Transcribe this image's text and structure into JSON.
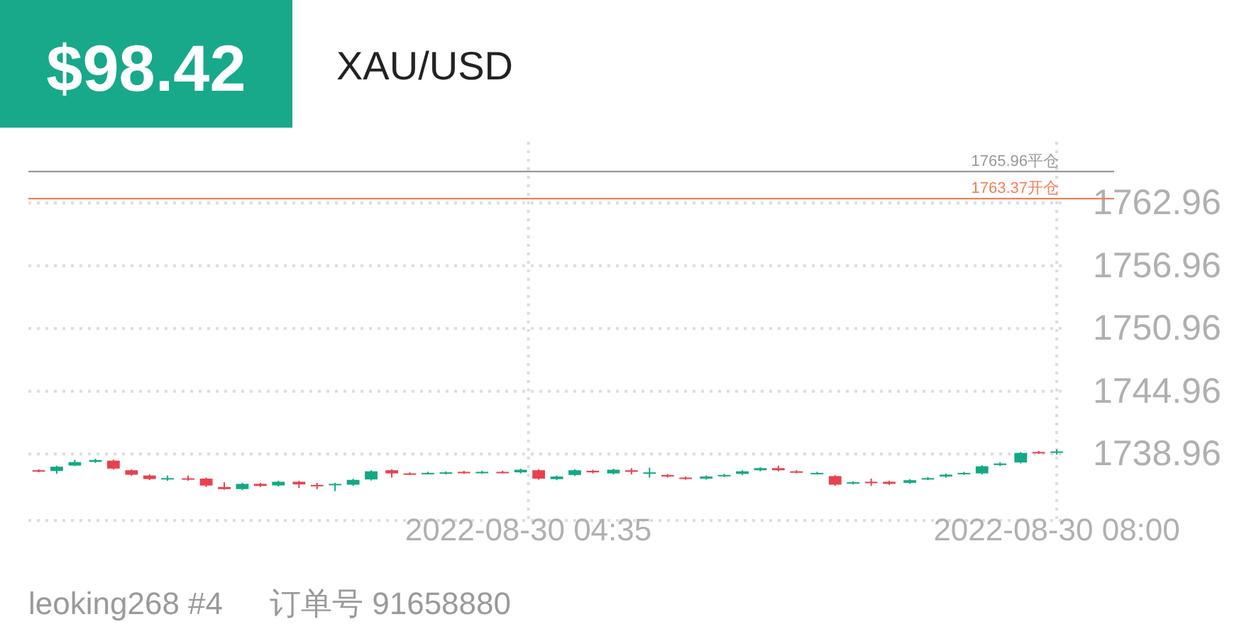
{
  "chart_data": {
    "type": "candlestick",
    "title": "XAU/USD",
    "annotations": [
      "$98.42",
      "leoking268 #4",
      "订单号 91658880"
    ],
    "x": [
      "2022-08-30T01:25",
      "2022-08-30T01:32",
      "2022-08-30T01:39",
      "2022-08-30T01:47",
      "2022-08-30T01:54",
      "2022-08-30T02:01",
      "2022-08-30T02:08",
      "2022-08-30T02:15",
      "2022-08-30T02:23",
      "2022-08-30T02:30",
      "2022-08-30T02:37",
      "2022-08-30T02:44",
      "2022-08-30T02:51",
      "2022-08-30T02:58",
      "2022-08-30T03:06",
      "2022-08-30T03:13",
      "2022-08-30T03:20",
      "2022-08-30T03:27",
      "2022-08-30T03:34",
      "2022-08-30T03:42",
      "2022-08-30T03:49",
      "2022-08-30T03:56",
      "2022-08-30T04:03",
      "2022-08-30T04:10",
      "2022-08-30T04:17",
      "2022-08-30T04:25",
      "2022-08-30T04:32",
      "2022-08-30T04:39",
      "2022-08-30T04:46",
      "2022-08-30T04:53",
      "2022-08-30T05:00",
      "2022-08-30T05:08",
      "2022-08-30T05:15",
      "2022-08-30T05:22",
      "2022-08-30T05:29",
      "2022-08-30T05:36",
      "2022-08-30T05:44",
      "2022-08-30T05:51",
      "2022-08-30T05:58",
      "2022-08-30T06:05",
      "2022-08-30T06:12",
      "2022-08-30T06:19",
      "2022-08-30T06:27",
      "2022-08-30T06:34",
      "2022-08-30T06:41",
      "2022-08-30T06:48",
      "2022-08-30T06:55",
      "2022-08-30T07:03",
      "2022-08-30T07:10",
      "2022-08-30T07:17",
      "2022-08-30T07:24",
      "2022-08-30T07:31",
      "2022-08-30T07:38",
      "2022-08-30T07:46",
      "2022-08-30T07:53",
      "2022-08-30T08:00"
    ],
    "ohlc": [
      [
        1737.4,
        1737.5,
        1737.2,
        1737.3
      ],
      [
        1737.33,
        1737.84,
        1737.06,
        1737.74
      ],
      [
        1737.85,
        1738.4,
        1737.8,
        1738.18
      ],
      [
        1738.2,
        1738.5,
        1738.1,
        1738.38
      ],
      [
        1738.32,
        1738.42,
        1737.46,
        1737.56
      ],
      [
        1737.4,
        1737.5,
        1736.87,
        1736.97
      ],
      [
        1736.9,
        1737.0,
        1736.46,
        1736.56
      ],
      [
        1736.6,
        1736.9,
        1736.4,
        1736.65
      ],
      [
        1736.63,
        1736.9,
        1736.4,
        1736.6
      ],
      [
        1736.6,
        1736.7,
        1735.8,
        1735.94
      ],
      [
        1735.8,
        1736.25,
        1735.55,
        1735.6
      ],
      [
        1735.6,
        1736.2,
        1735.5,
        1736.1
      ],
      [
        1736.1,
        1736.2,
        1735.8,
        1735.9
      ],
      [
        1735.95,
        1736.4,
        1735.85,
        1736.3
      ],
      [
        1736.3,
        1736.4,
        1735.7,
        1736.05
      ],
      [
        1736.0,
        1736.2,
        1735.6,
        1735.9
      ],
      [
        1736.0,
        1736.2,
        1735.4,
        1736.1
      ],
      [
        1736.02,
        1736.58,
        1735.92,
        1736.48
      ],
      [
        1736.52,
        1737.4,
        1736.42,
        1737.3
      ],
      [
        1737.4,
        1737.5,
        1736.7,
        1737.1
      ],
      [
        1737.1,
        1737.2,
        1736.95,
        1737.05
      ],
      [
        1737.1,
        1737.25,
        1737.0,
        1737.15
      ],
      [
        1737.1,
        1737.3,
        1737.0,
        1737.2
      ],
      [
        1737.25,
        1737.35,
        1737.05,
        1737.15
      ],
      [
        1737.15,
        1737.35,
        1737.05,
        1737.25
      ],
      [
        1737.25,
        1737.35,
        1737.1,
        1737.2
      ],
      [
        1737.2,
        1737.55,
        1737.1,
        1737.45
      ],
      [
        1737.4,
        1737.5,
        1736.5,
        1736.6
      ],
      [
        1736.55,
        1736.9,
        1736.45,
        1736.8
      ],
      [
        1736.95,
        1737.5,
        1736.85,
        1737.4
      ],
      [
        1737.35,
        1737.45,
        1737.1,
        1737.2
      ],
      [
        1737.1,
        1737.55,
        1737.0,
        1737.45
      ],
      [
        1737.4,
        1737.6,
        1737.0,
        1737.25
      ],
      [
        1737.15,
        1737.65,
        1736.7,
        1737.2
      ],
      [
        1736.95,
        1737.05,
        1736.7,
        1736.8
      ],
      [
        1736.7,
        1736.8,
        1736.5,
        1736.6
      ],
      [
        1736.6,
        1736.9,
        1736.5,
        1736.8
      ],
      [
        1736.85,
        1737.05,
        1736.75,
        1736.95
      ],
      [
        1737.05,
        1737.4,
        1736.95,
        1737.3
      ],
      [
        1737.4,
        1737.7,
        1737.3,
        1737.6
      ],
      [
        1737.6,
        1737.85,
        1737.3,
        1737.4
      ],
      [
        1737.3,
        1737.4,
        1737.1,
        1737.2
      ],
      [
        1737.1,
        1737.25,
        1737.0,
        1737.15
      ],
      [
        1736.84,
        1736.94,
        1735.92,
        1736.02
      ],
      [
        1736.15,
        1736.35,
        1736.05,
        1736.25
      ],
      [
        1736.3,
        1736.6,
        1735.9,
        1736.25
      ],
      [
        1736.3,
        1736.4,
        1736.0,
        1736.1
      ],
      [
        1736.2,
        1736.55,
        1736.1,
        1736.45
      ],
      [
        1736.55,
        1736.75,
        1736.45,
        1736.65
      ],
      [
        1736.8,
        1737.08,
        1736.7,
        1736.98
      ],
      [
        1737.05,
        1737.25,
        1736.95,
        1737.15
      ],
      [
        1737.1,
        1737.88,
        1737.0,
        1737.78
      ],
      [
        1737.9,
        1738.15,
        1737.8,
        1738.05
      ],
      [
        1738.15,
        1739.15,
        1738.05,
        1739.05
      ],
      [
        1739.15,
        1739.25,
        1738.95,
        1739.05
      ],
      [
        1739.1,
        1739.4,
        1738.9,
        1739.2
      ]
    ],
    "colors": [
      "#e8414f",
      "#13a884",
      "#13a884",
      "#13a884",
      "#e8414f",
      "#e8414f",
      "#e8414f",
      "#13a884",
      "#e8414f",
      "#e8414f",
      "#e8414f",
      "#13a884",
      "#e8414f",
      "#13a884",
      "#e8414f",
      "#e8414f",
      "#13a884",
      "#13a884",
      "#13a884",
      "#e8414f",
      "#e8414f",
      "#13a884",
      "#13a884",
      "#e8414f",
      "#13a884",
      "#e8414f",
      "#13a884",
      "#e8414f",
      "#13a884",
      "#13a884",
      "#e8414f",
      "#13a884",
      "#e8414f",
      "#13a884",
      "#e8414f",
      "#e8414f",
      "#13a884",
      "#13a884",
      "#13a884",
      "#13a884",
      "#e8414f",
      "#e8414f",
      "#13a884",
      "#e8414f",
      "#13a884",
      "#e8414f",
      "#e8414f",
      "#13a884",
      "#13a884",
      "#13a884",
      "#13a884",
      "#13a884",
      "#13a884",
      "#13a884",
      "#e8414f",
      "#13a884"
    ],
    "xlim": [
      "2022-08-30T01:21",
      "2022-08-30T08:03"
    ],
    "xticks": [
      {
        "value": "2022-08-30T04:35",
        "label": "2022-08-30 04:35"
      },
      {
        "value": "2022-08-30T08:00",
        "label": "2022-08-30 08:00"
      }
    ],
    "ylim": [
      1732.6,
      1768.8
    ],
    "yticks": [
      1738.96,
      1744.96,
      1750.96,
      1756.96,
      1762.96
    ],
    "grid": true,
    "ref_lines": [
      {
        "axis": "y",
        "value": 1765.96,
        "label": "1765.96平仓",
        "color": "#999999"
      },
      {
        "axis": "y",
        "value": 1763.37,
        "label": "1763.37开仓",
        "color": "#f07f5a"
      }
    ]
  }
}
